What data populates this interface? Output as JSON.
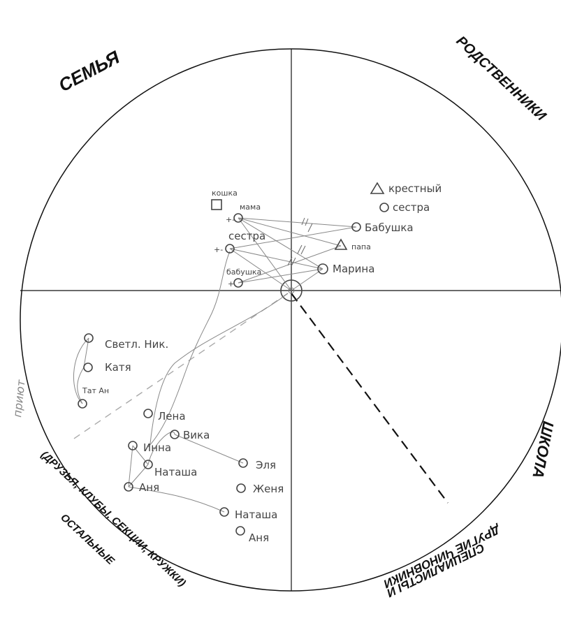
{
  "sectors": {
    "family": "СЕМЬЯ",
    "relatives": "РОДСТВЕННИКИ",
    "school": "ШКОЛА",
    "others_line1": "ОСТАЛЬНЫЕ",
    "others_line2": "(ДРУЗЬЯ, КЛУБЫ, СЕКЦИИ, КРУЖКИ)",
    "officials_line1": "ДРУГИЕ ЧИНОВНИКИ",
    "officials_line2": "СПЕЦИАЛИСТЫ И",
    "shelter": "приют"
  },
  "nodes": {
    "cat": "кошка",
    "mom": "мама",
    "sister_family": "сестра",
    "grandma_family": "бабушка",
    "godfather": "крестный",
    "sister_rel": "сестра",
    "grandma_rel": "Бабушка",
    "dad": "папа",
    "marina": "Марина",
    "svetl": "Светл. Ник.",
    "katya": "Катя",
    "tatan": "Тат Ан",
    "lena": "Лена",
    "vika": "Вика",
    "inna": "Инна",
    "natasha1": "Наташа",
    "anya1": "Аня",
    "elya": "Эля",
    "zhenya": "Женя",
    "natasha2": "Наташа",
    "anya2": "Аня"
  },
  "marks": {
    "plus_minus": "+-",
    "plus": "+"
  }
}
